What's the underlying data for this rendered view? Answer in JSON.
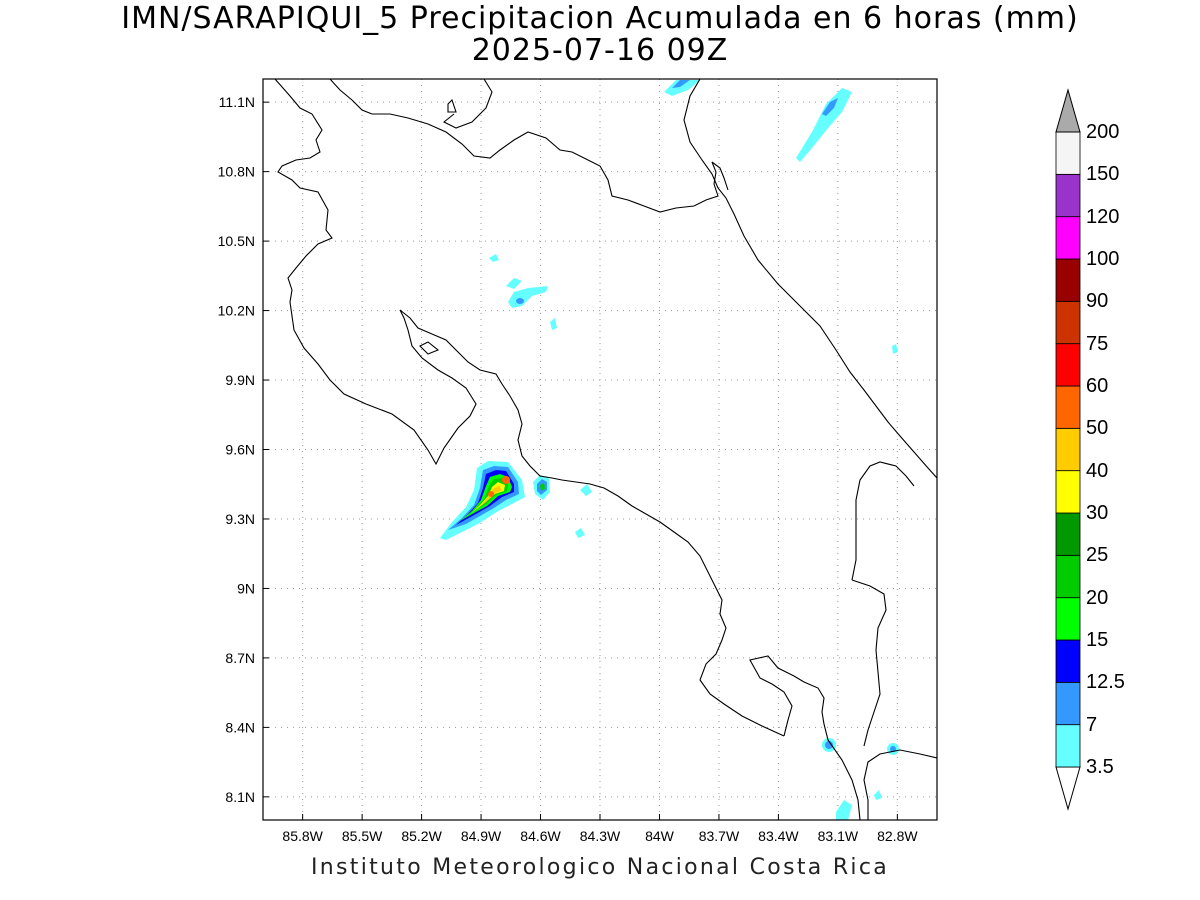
{
  "title": {
    "line1": "IMN/SARAPIQUI_5 Precipitacion Acumulada en 6 horas (mm)",
    "line2": "2025-07-16 09Z"
  },
  "footer": "Instituto Meteorologico Nacional Costa Rica",
  "axes": {
    "lon_ticks": [
      "85.8W",
      "85.5W",
      "85.2W",
      "84.9W",
      "84.6W",
      "84.3W",
      "84W",
      "83.7W",
      "83.4W",
      "83.1W",
      "82.8W"
    ],
    "lat_ticks": [
      "11.1N",
      "10.8N",
      "10.5N",
      "10.2N",
      "9.9N",
      "9.6N",
      "9.3N",
      "9N",
      "8.7N",
      "8.4N",
      "8.1N"
    ],
    "lon_range": [
      -86.0,
      -82.6
    ],
    "lat_range": [
      8.0,
      11.2
    ],
    "grid": true
  },
  "colorbar": {
    "labels": [
      "3.5",
      "7",
      "12.5",
      "15",
      "20",
      "25",
      "30",
      "40",
      "50",
      "60",
      "75",
      "90",
      "100",
      "120",
      "150",
      "200"
    ],
    "colors": [
      "#66ffff",
      "#3399ff",
      "#0000ff",
      "#00ff00",
      "#00cc00",
      "#009900",
      "#ffff00",
      "#ffcc00",
      "#ff6600",
      "#ff0000",
      "#cc3300",
      "#990000",
      "#ff00ff",
      "#9933cc",
      "#f5f5f5",
      "#aaaaaa"
    ]
  }
}
